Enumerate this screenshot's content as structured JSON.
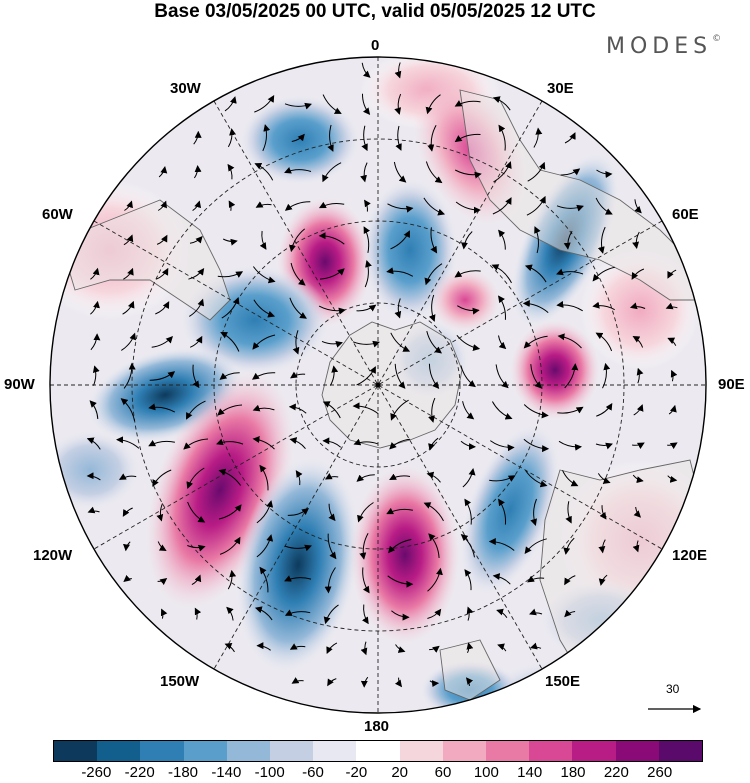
{
  "title": "Base 03/05/2025 00 UTC, valid 05/05/2025 12 UTC",
  "brand": "MODES",
  "brand_mark": "©",
  "meridian_labels": {
    "m0": "0",
    "e30": "30E",
    "e60": "60E",
    "e90": "90E",
    "e120": "120E",
    "e150": "150E",
    "m180": "180",
    "w150": "150W",
    "w120": "120W",
    "w90": "90W",
    "w60": "60W",
    "w30": "30W"
  },
  "reference_vector": {
    "label": "30"
  },
  "colorbar": {
    "colors": [
      "#0d3a5c",
      "#125e8c",
      "#2f7fb4",
      "#5a9fcc",
      "#94b8d8",
      "#c4cfe3",
      "#e8e8f2",
      "#ffffff",
      "#f6d6dd",
      "#f1aac0",
      "#e97aa5",
      "#d94895",
      "#b81c85",
      "#8a0a78",
      "#5a0a6a"
    ],
    "ticks": [
      "-260",
      "-220",
      "-180",
      "-140",
      "-100",
      "-60",
      "-20",
      "20",
      "60",
      "100",
      "140",
      "180",
      "220",
      "260"
    ]
  },
  "map_colors": {
    "ocean_bg": "#eceaf0",
    "land": "#ebe6e6",
    "coast": "#666666",
    "graticule": "#222222",
    "arrow": "#000000"
  }
}
